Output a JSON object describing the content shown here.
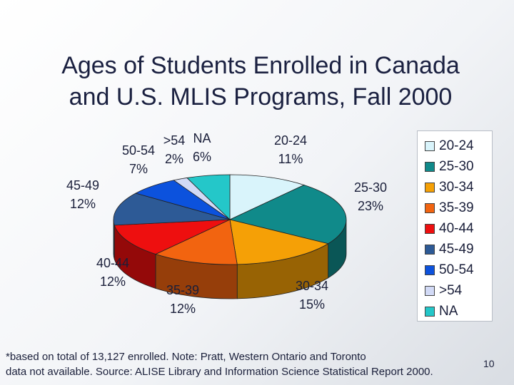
{
  "slide": {
    "title_line1": "Ages of Students Enrolled in Canada",
    "title_line2": "and U.S. MLIS Programs, Fall 2000",
    "footnote_line1": "*based on total of 13,127 enrolled. Note: Pratt, Western Ontario and Toronto",
    "footnote_line2": "data not available. Source: ALISE Library and Information Science Statistical Report 2000.",
    "page_number": "10"
  },
  "chart_data": {
    "type": "pie",
    "style": "3d",
    "legend_position": "right",
    "slices": [
      {
        "category": "20-24",
        "percent_label": "11%",
        "value": 11,
        "color": "#d9f4fb"
      },
      {
        "category": "25-30",
        "percent_label": "23%",
        "value": 23,
        "color": "#108a8a"
      },
      {
        "category": "30-34",
        "percent_label": "15%",
        "value": 15,
        "color": "#f5a006"
      },
      {
        "category": "35-39",
        "percent_label": "12%",
        "value": 12,
        "color": "#f26410"
      },
      {
        "category": "40-44",
        "percent_label": "12%",
        "value": 12,
        "color": "#ee0f0f"
      },
      {
        "category": "45-49",
        "percent_label": "12%",
        "value": 12,
        "color": "#2d5a96"
      },
      {
        "category": "50-54",
        "percent_label": "7%",
        "value": 7,
        "color": "#0c52dd"
      },
      {
        "category": ">54",
        "percent_label": "2%",
        "value": 2,
        "color": "#d2daf6"
      },
      {
        "category": "NA",
        "percent_label": "6%",
        "value": 6,
        "color": "#24c7c9"
      }
    ]
  }
}
